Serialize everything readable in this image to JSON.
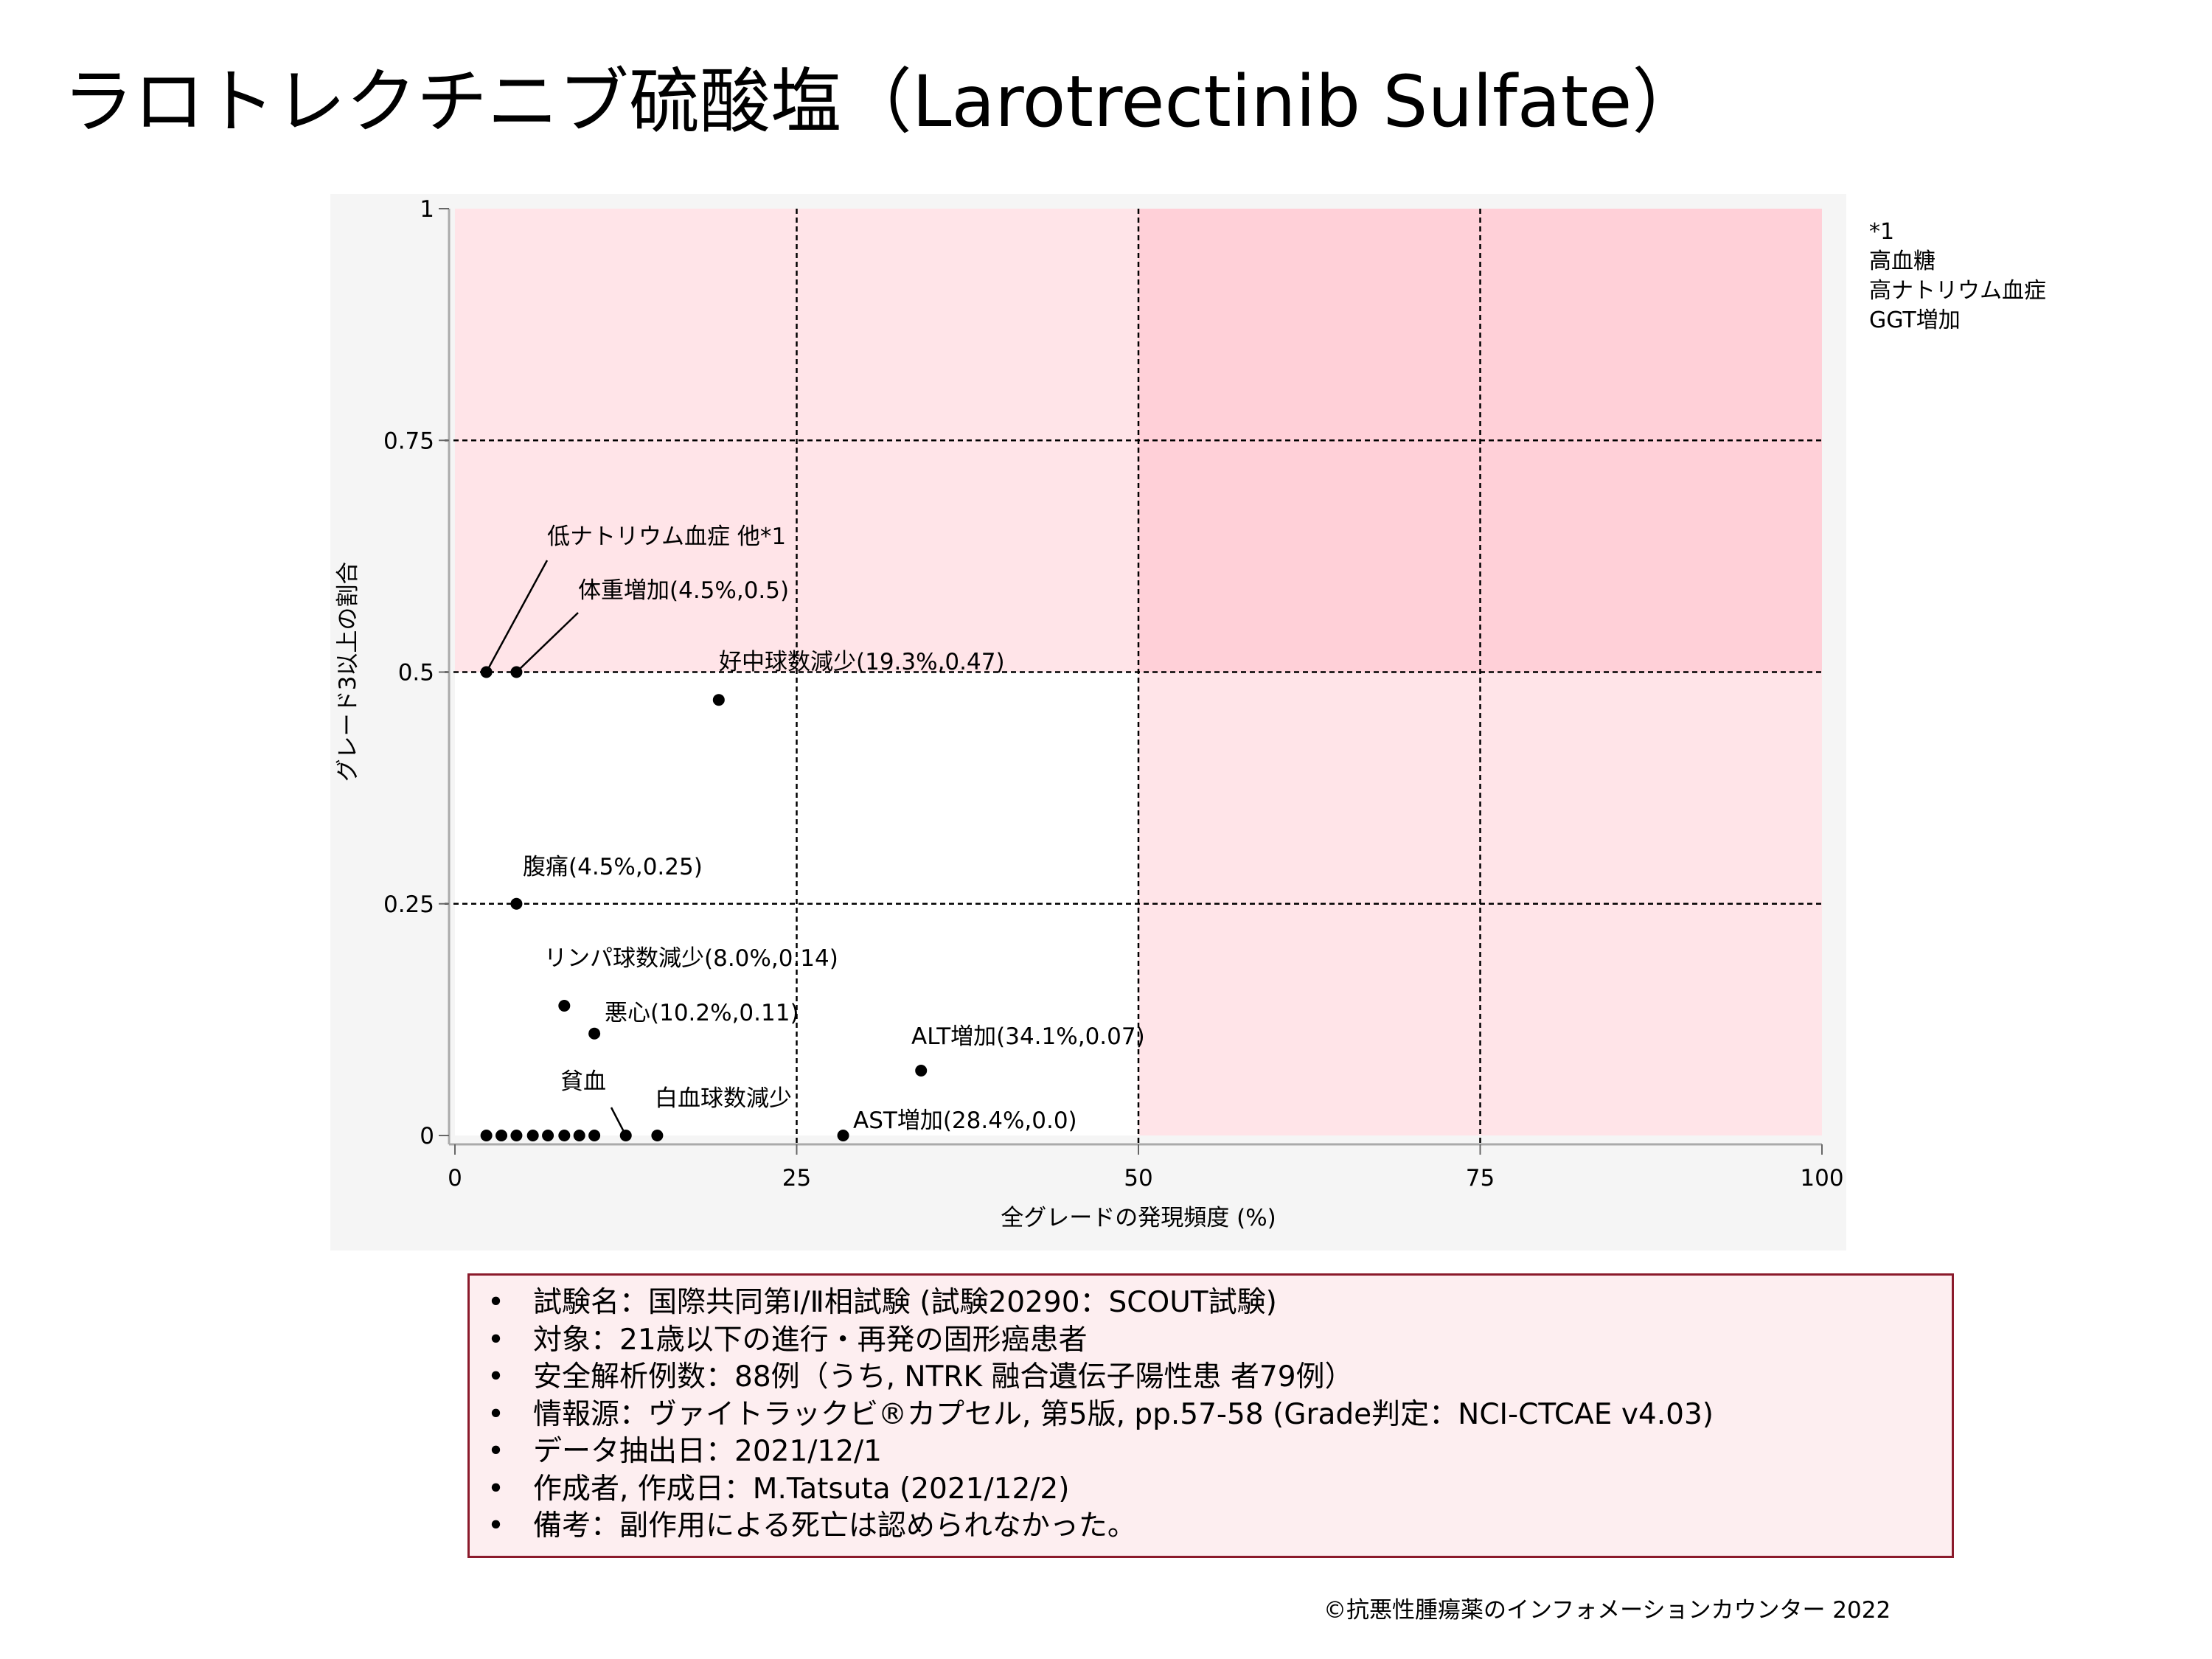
{
  "title": "ラロトレクチニブ硫酸塩（Larotrectinib Sulfate）",
  "footnote": {
    "lines": [
      "*1",
      "高血糖",
      "高ナトリウム血症",
      "GGT増加"
    ]
  },
  "info_box": {
    "bullet": "•",
    "items": [
      "試験名：国際共同第Ⅰ/Ⅱ相試験 (試験20290：SCOUT試験)",
      "対象：21歳以下の進行・再発の固形癌患者",
      "安全解析例数：88例（うち, NTRK 融合遺伝子陽性患 者79例）",
      "情報源：ヴァイトラックビ®カプセル, 第5版, pp.57-58 (Grade判定：NCI-CTCAE v4.03)",
      "データ抽出日：2021/12/1",
      "作成者, 作成日：M.Tatsuta (2021/12/2)",
      "備考：副作用による死亡は認められなかった。"
    ]
  },
  "copyright": "©抗悪性腫瘍薬のインフォメーションカウンター  2022",
  "chart_data": {
    "type": "scatter",
    "xlabel": "全グレードの発現頻度 (%)",
    "ylabel": "グレード3以上の割合",
    "xlim": [
      0,
      100
    ],
    "ylim": [
      0,
      1
    ],
    "x_ticks": [
      0,
      25,
      50,
      75,
      100
    ],
    "x_tick_labels": [
      "0",
      "25",
      "50",
      "75",
      "100"
    ],
    "y_ticks": [
      0,
      0.25,
      0.5,
      0.75,
      1
    ],
    "y_tick_labels": [
      "0",
      "0.25",
      "0.5",
      "0.75",
      "1"
    ],
    "grid": "dashed at 25/50/75 and 0.25/0.5/0.75",
    "colors": {
      "region_light": "#ffe4e8",
      "region_dark": "#ffd0d8",
      "point": "#000000",
      "panel": "#f5f5f5"
    },
    "points": [
      {
        "x": 2.3,
        "y": 0.5,
        "label": "低ナトリウム血症 他*1"
      },
      {
        "x": 4.5,
        "y": 0.5,
        "label": "体重増加(4.5%,0.5)"
      },
      {
        "x": 19.3,
        "y": 0.47,
        "label": "好中球数減少(19.3%,0.47)"
      },
      {
        "x": 4.5,
        "y": 0.25,
        "label": "腹痛(4.5%,0.25)"
      },
      {
        "x": 8.0,
        "y": 0.14,
        "label": "リンパ球数減少(8.0%,0.14)"
      },
      {
        "x": 10.2,
        "y": 0.11,
        "label": "悪心(10.2%,0.11)"
      },
      {
        "x": 34.1,
        "y": 0.07,
        "label": "ALT増加(34.1%,0.07)"
      },
      {
        "x": 12.5,
        "y": 0,
        "label": "貧血"
      },
      {
        "x": 14.8,
        "y": 0,
        "label": "白血球数減少"
      },
      {
        "x": 28.4,
        "y": 0,
        "label": "AST増加(28.4%,0.0)"
      },
      {
        "x": 2.3,
        "y": 0,
        "label": ""
      },
      {
        "x": 3.4,
        "y": 0,
        "label": ""
      },
      {
        "x": 4.5,
        "y": 0,
        "label": ""
      },
      {
        "x": 5.7,
        "y": 0,
        "label": ""
      },
      {
        "x": 6.8,
        "y": 0,
        "label": ""
      },
      {
        "x": 8.0,
        "y": 0,
        "label": ""
      },
      {
        "x": 9.1,
        "y": 0,
        "label": ""
      },
      {
        "x": 10.2,
        "y": 0,
        "label": ""
      }
    ]
  }
}
